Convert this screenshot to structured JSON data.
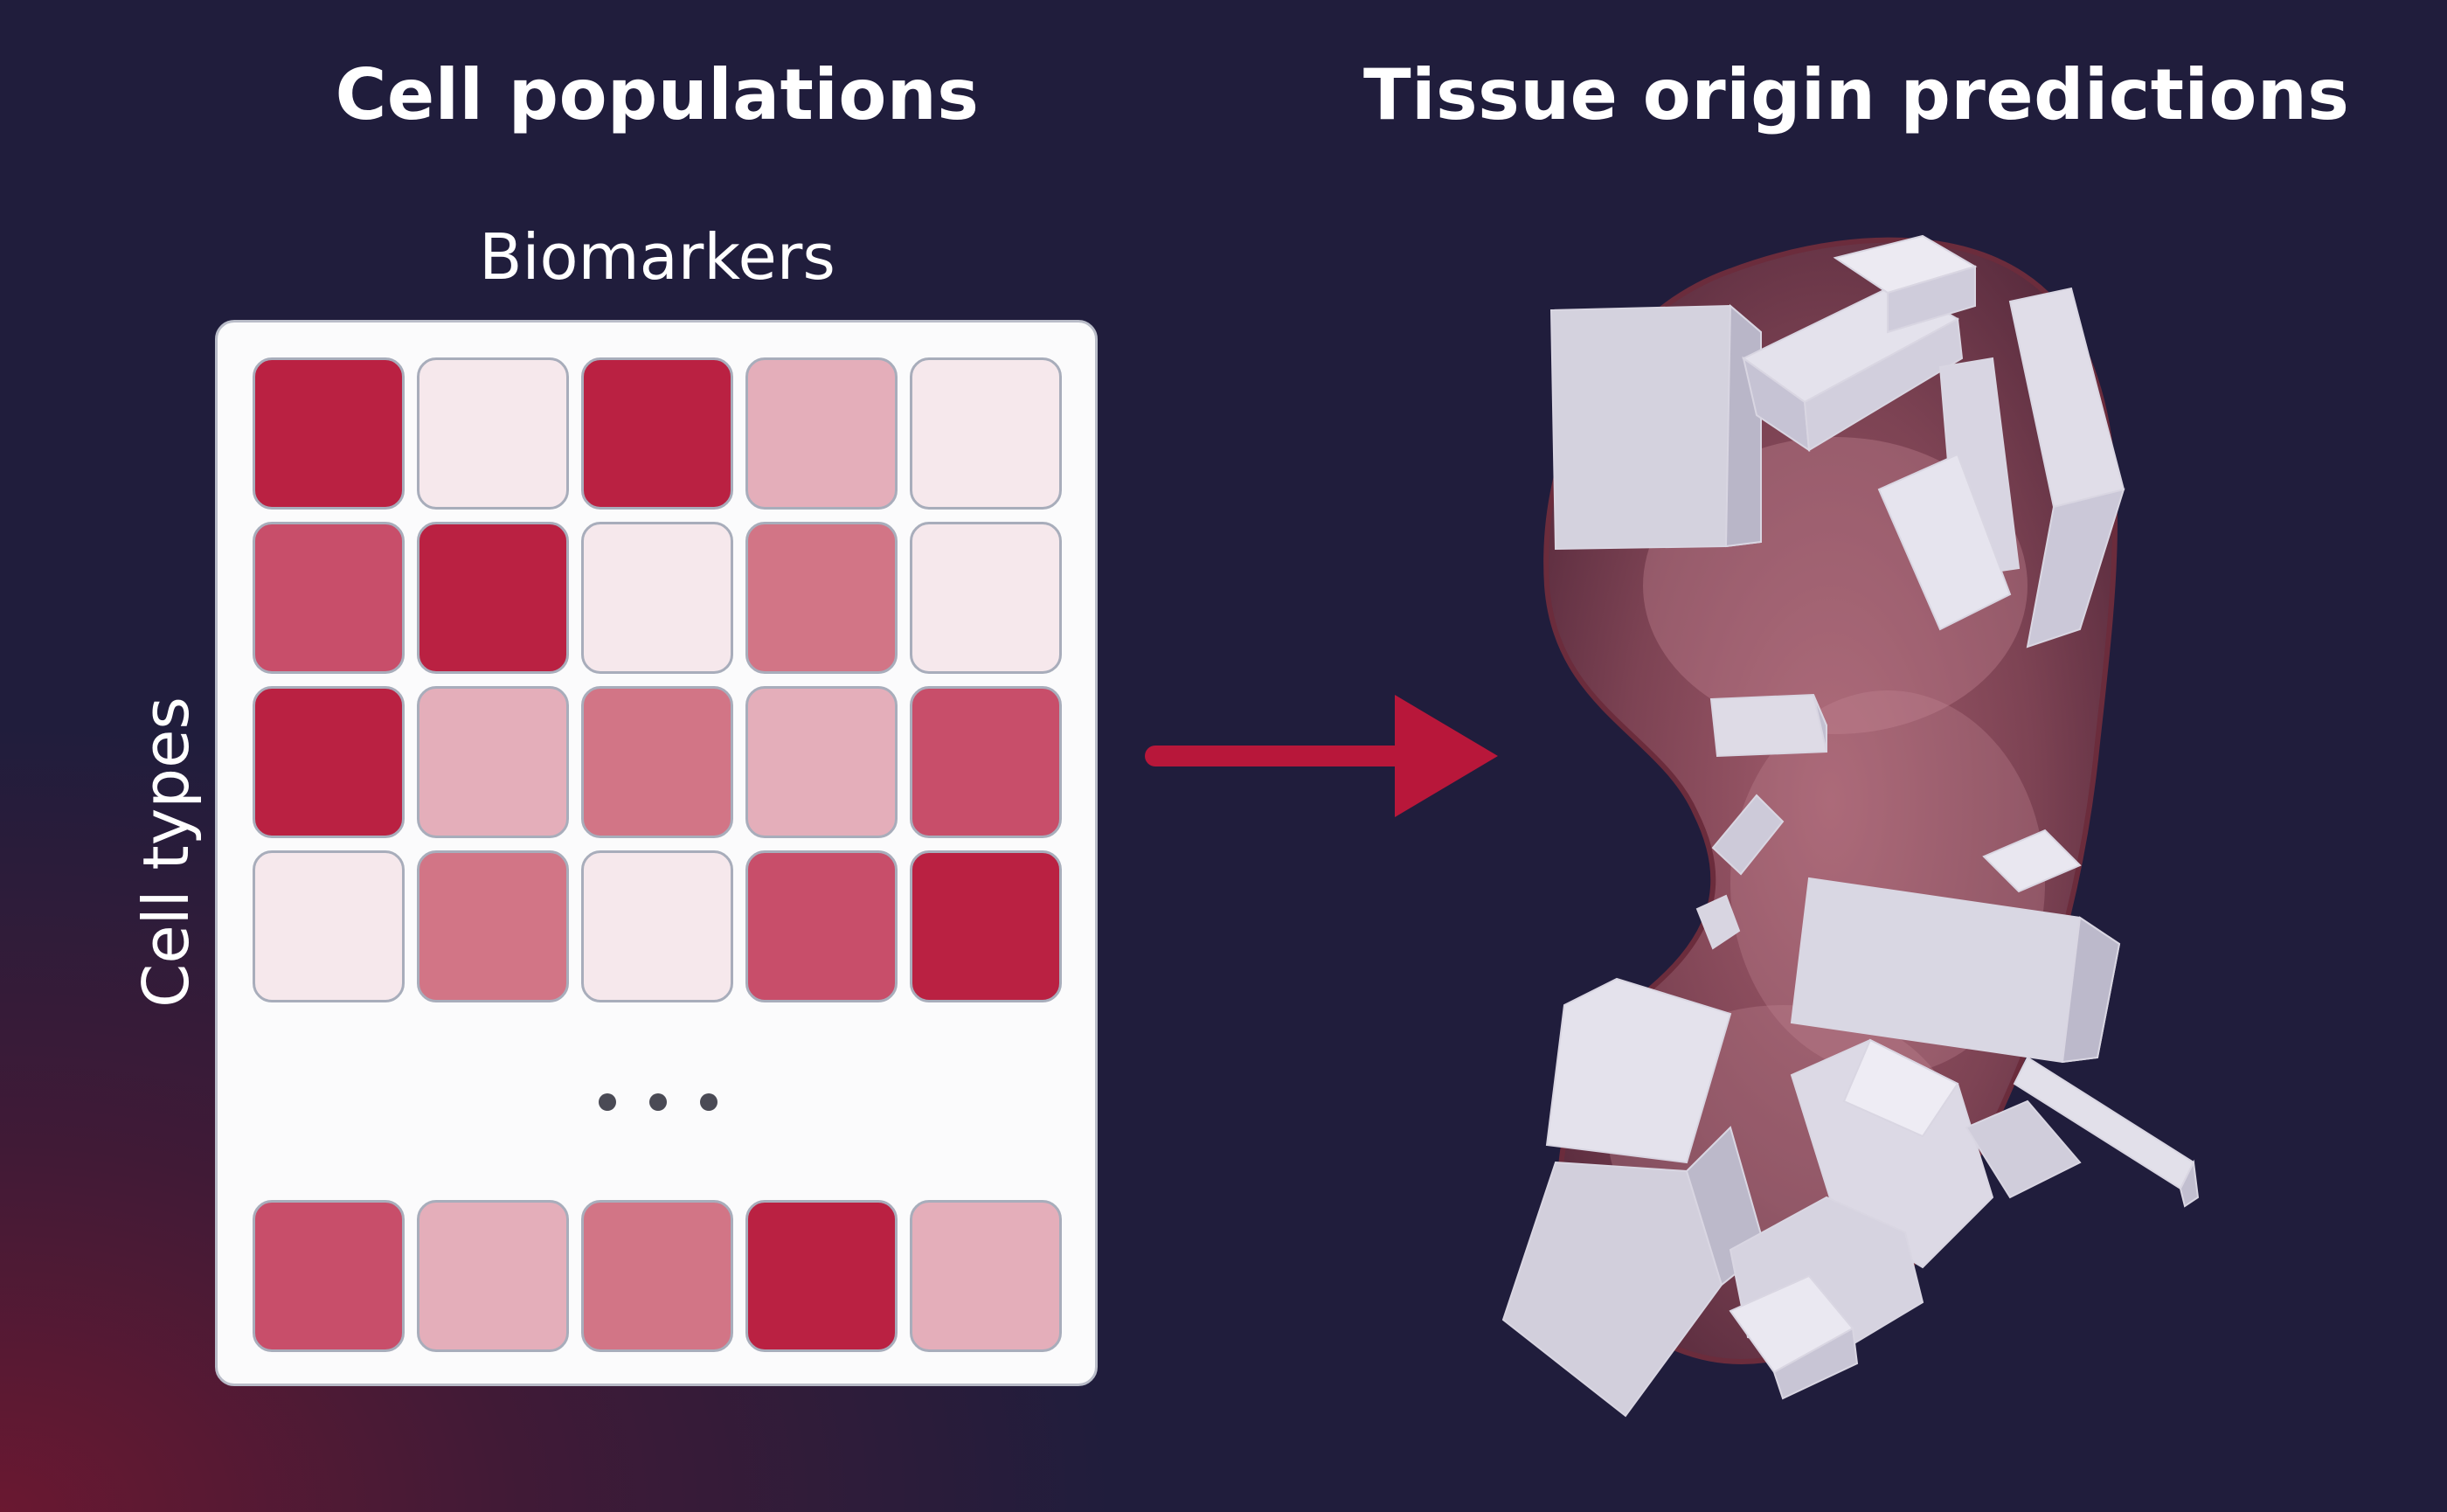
{
  "titles": {
    "left": "Cell populations",
    "right": "Tissue origin predictions"
  },
  "matrix": {
    "column_axis_label": "Biomarkers",
    "row_axis_label": "Cell types",
    "ellipsis": "...",
    "rows": [
      [
        4,
        0,
        4,
        1,
        0
      ],
      [
        3,
        4,
        0,
        2,
        0
      ],
      [
        4,
        1,
        2,
        1,
        3
      ],
      [
        0,
        2,
        0,
        3,
        4
      ]
    ],
    "last_row": [
      3,
      1,
      2,
      4,
      1
    ],
    "color_scale": [
      "#f6e8ec",
      "#e4aeba",
      "#d27586",
      "#c84e6a",
      "#ba2142"
    ]
  },
  "colors": {
    "background": "#201d3c",
    "accent": "#b8173a",
    "panel": "#fbfbfc"
  },
  "illustration": {
    "name": "tissue-organ-with-crystals"
  }
}
